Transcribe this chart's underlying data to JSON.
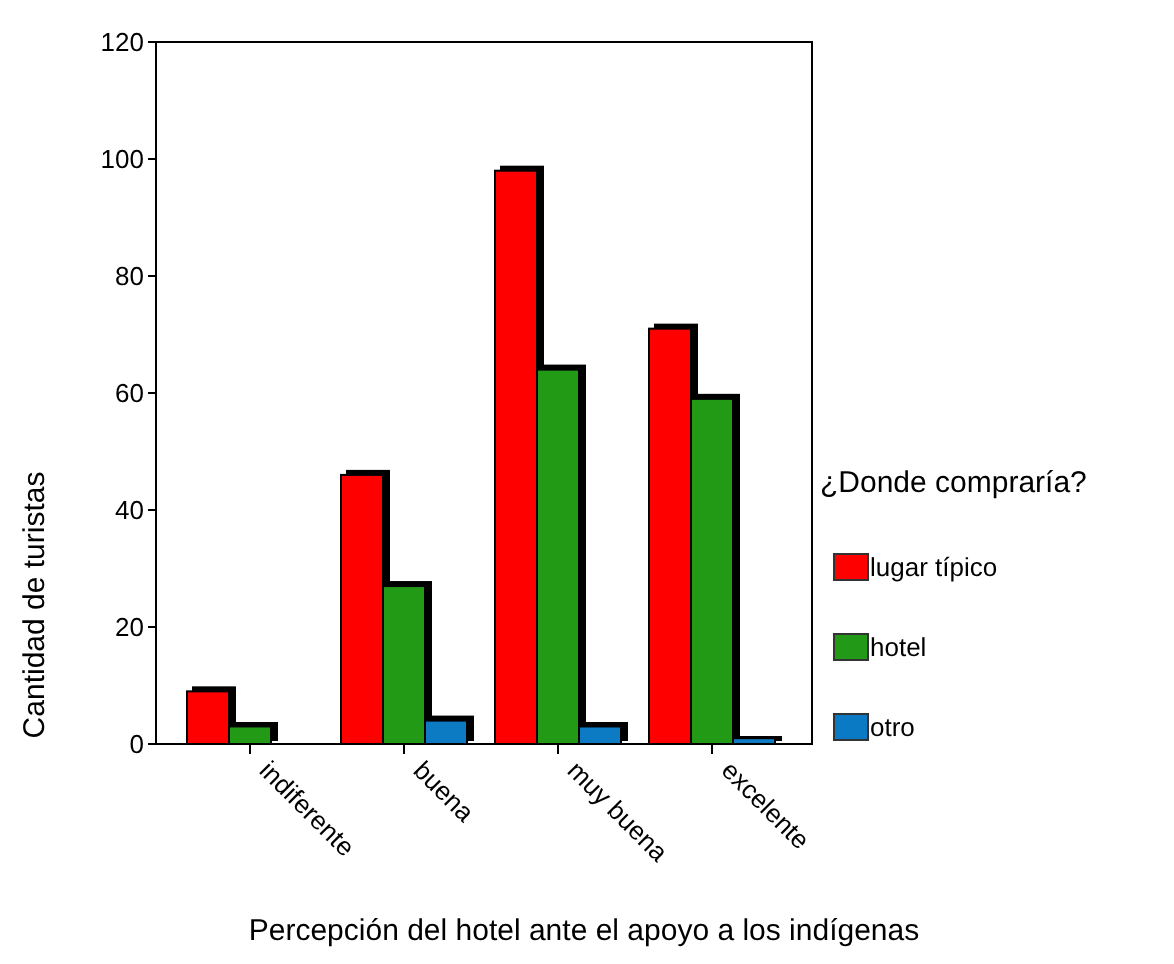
{
  "chart_data": {
    "type": "bar",
    "xlabel": "Percepción del hotel ante el apoyo a los indígenas",
    "ylabel": "Cantidad de turistas",
    "legend_title": "¿Donde compraría?",
    "categories": [
      "indiferente",
      "buena",
      "muy buena",
      "excelente"
    ],
    "series": [
      {
        "name": "lugar típico",
        "color": "#ff0000",
        "values": [
          9,
          46,
          98,
          71
        ]
      },
      {
        "name": "hotel",
        "color": "#229a18",
        "values": [
          3,
          27,
          64,
          59
        ]
      },
      {
        "name": "otro",
        "color": "#0a7ac4",
        "values": [
          0,
          4,
          3,
          1
        ]
      }
    ],
    "ylim": [
      0,
      120
    ],
    "yticks": [
      0,
      20,
      40,
      60,
      80,
      100,
      120
    ],
    "grid": false,
    "legend": "right"
  }
}
